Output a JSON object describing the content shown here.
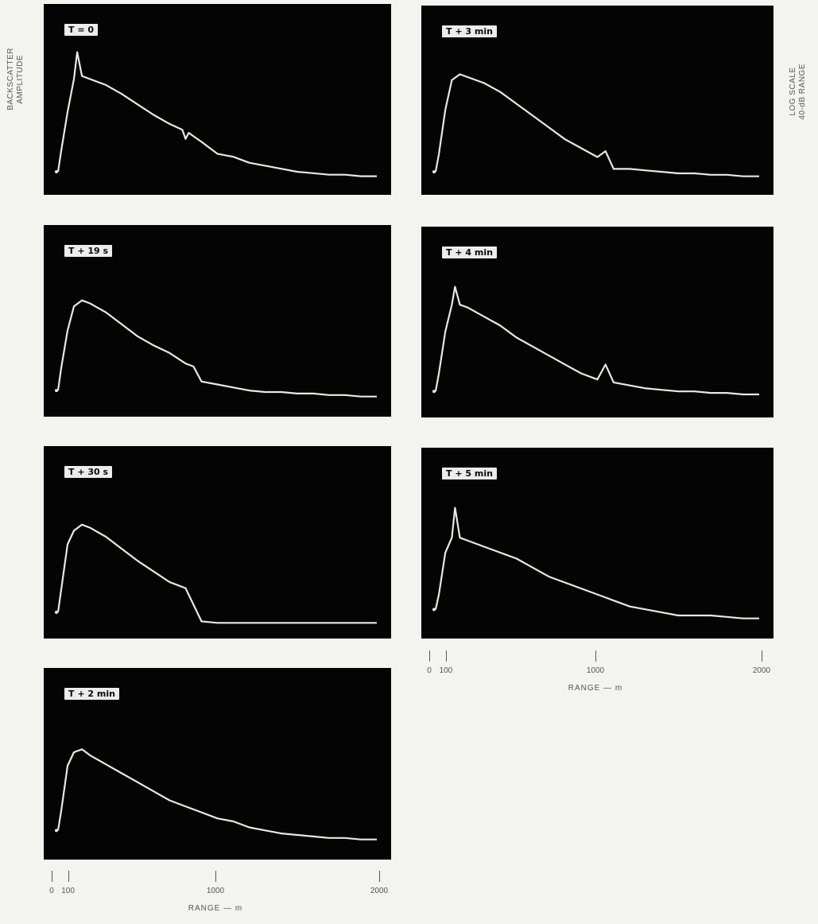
{
  "figure": {
    "left_axis_label": [
      "BACKSCATTER",
      "AMPLITUDE"
    ],
    "right_axis_label": [
      "LOG SCALE",
      "40-dB RANGE"
    ]
  },
  "colors": {
    "panel_bg": "#040404",
    "trace": "#e8e8e2",
    "tag_bg": "#ececec",
    "page_bg": "#f3f3ef"
  },
  "x_axis": {
    "ticks": [
      0,
      100,
      1000,
      2000
    ],
    "tick_labels": [
      "0",
      "100",
      "1000",
      "2000"
    ],
    "title": "RANGE — m"
  },
  "chart_data": [
    {
      "type": "line",
      "title": "T = 0",
      "xlabel": "",
      "ylabel": "",
      "xlim": [
        0,
        2000
      ],
      "ylim": [
        0,
        100
      ],
      "x": [
        0,
        20,
        60,
        100,
        120,
        150,
        200,
        300,
        400,
        500,
        600,
        700,
        780,
        800,
        820,
        900,
        1000,
        1100,
        1200,
        1300,
        1400,
        1500,
        1600,
        1700,
        1800,
        1900,
        2000
      ],
      "y": [
        8,
        22,
        48,
        70,
        88,
        72,
        70,
        66,
        60,
        53,
        46,
        40,
        36,
        30,
        34,
        28,
        20,
        18,
        14,
        12,
        10,
        8,
        7,
        6,
        6,
        5,
        5
      ]
    },
    {
      "type": "line",
      "title": "T + 19 s",
      "xlabel": "",
      "ylabel": "",
      "xlim": [
        0,
        2000
      ],
      "ylim": [
        0,
        100
      ],
      "x": [
        0,
        20,
        60,
        100,
        150,
        200,
        300,
        400,
        500,
        600,
        700,
        800,
        850,
        900,
        1000,
        1100,
        1200,
        1300,
        1400,
        1500,
        1600,
        1700,
        1800,
        1900,
        2000
      ],
      "y": [
        10,
        25,
        50,
        66,
        70,
        68,
        62,
        54,
        46,
        40,
        35,
        28,
        26,
        16,
        14,
        12,
        10,
        9,
        9,
        8,
        8,
        7,
        7,
        6,
        6
      ]
    },
    {
      "type": "line",
      "title": "T + 30 s",
      "xlabel": "",
      "ylabel": "",
      "xlim": [
        0,
        2000
      ],
      "ylim": [
        0,
        100
      ],
      "x": [
        0,
        20,
        60,
        100,
        150,
        200,
        300,
        400,
        500,
        600,
        700,
        750,
        800,
        900,
        1000,
        1200,
        1400,
        1600,
        1800,
        2000
      ],
      "y": [
        10,
        25,
        55,
        64,
        68,
        66,
        60,
        52,
        44,
        37,
        30,
        28,
        26,
        4,
        3,
        3,
        3,
        3,
        3,
        3
      ]
    },
    {
      "type": "line",
      "title": "T + 2 min",
      "xlabel": "",
      "ylabel": "",
      "xlim": [
        0,
        2000
      ],
      "ylim": [
        0,
        100
      ],
      "x": [
        0,
        20,
        60,
        100,
        150,
        200,
        300,
        400,
        500,
        600,
        700,
        800,
        900,
        1000,
        1100,
        1200,
        1300,
        1400,
        1500,
        1600,
        1700,
        1800,
        1900,
        2000
      ],
      "y": [
        12,
        25,
        55,
        64,
        66,
        62,
        56,
        50,
        44,
        38,
        32,
        28,
        24,
        20,
        18,
        14,
        12,
        10,
        9,
        8,
        7,
        7,
        6,
        6
      ]
    },
    {
      "type": "line",
      "title": "T + 3 min",
      "xlabel": "",
      "ylabel": "",
      "xlim": [
        0,
        2000
      ],
      "ylim": [
        0,
        100
      ],
      "x": [
        0,
        20,
        60,
        100,
        150,
        200,
        300,
        400,
        500,
        600,
        700,
        800,
        900,
        1000,
        1050,
        1100,
        1200,
        1300,
        1400,
        1500,
        1600,
        1700,
        1800,
        1900,
        2000
      ],
      "y": [
        8,
        20,
        50,
        70,
        74,
        72,
        68,
        62,
        54,
        46,
        38,
        30,
        24,
        18,
        22,
        10,
        10,
        9,
        8,
        7,
        7,
        6,
        6,
        5,
        5
      ]
    },
    {
      "type": "line",
      "title": "T + 4 min",
      "xlabel": "",
      "ylabel": "",
      "xlim": [
        0,
        2000
      ],
      "ylim": [
        0,
        100
      ],
      "x": [
        0,
        20,
        60,
        100,
        120,
        150,
        200,
        300,
        400,
        500,
        600,
        700,
        800,
        900,
        1000,
        1050,
        1100,
        1200,
        1300,
        1400,
        1500,
        1600,
        1700,
        1800,
        1900,
        2000
      ],
      "y": [
        10,
        22,
        50,
        68,
        80,
        68,
        66,
        60,
        54,
        46,
        40,
        34,
        28,
        22,
        18,
        28,
        16,
        14,
        12,
        11,
        10,
        10,
        9,
        9,
        8,
        8
      ]
    },
    {
      "type": "line",
      "title": "T + 5 min",
      "xlabel": "",
      "ylabel": "",
      "xlim": [
        0,
        2000
      ],
      "ylim": [
        0,
        100
      ],
      "x": [
        0,
        20,
        60,
        100,
        120,
        150,
        200,
        300,
        400,
        500,
        600,
        700,
        800,
        900,
        1000,
        1100,
        1200,
        1300,
        1400,
        1500,
        1600,
        1700,
        1800,
        1900,
        2000
      ],
      "y": [
        12,
        22,
        50,
        60,
        80,
        60,
        58,
        54,
        50,
        46,
        40,
        34,
        30,
        26,
        22,
        18,
        14,
        12,
        10,
        8,
        8,
        8,
        7,
        6,
        6
      ]
    }
  ]
}
